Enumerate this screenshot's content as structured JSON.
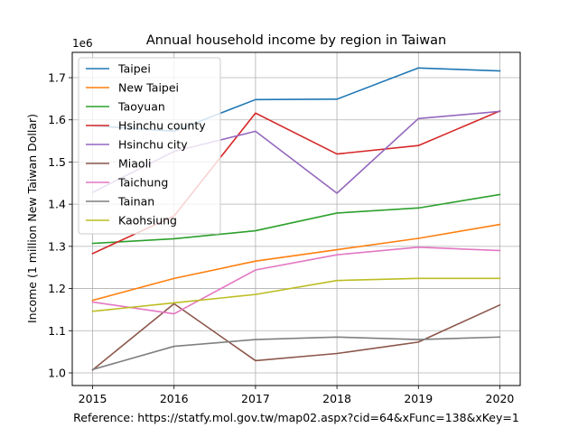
{
  "chart_data": {
    "type": "line",
    "title": "Annual household income by region in Taiwan",
    "xlabel": "",
    "ylabel": "Income (1 million New Taiwan Dollar)",
    "y_offset_text": "1e6",
    "note": "Reference: https://statfy.mol.gov.tw/map02.aspx?cid=64&xFunc=138&xKey=1",
    "x": [
      2015,
      2016,
      2017,
      2018,
      2019,
      2020
    ],
    "xticks": [
      "2015",
      "2016",
      "2017",
      "2018",
      "2019",
      "2020"
    ],
    "yticks": [
      "1.0",
      "1.1",
      "1.2",
      "1.3",
      "1.4",
      "1.5",
      "1.6",
      "1.7"
    ],
    "ytick_values": [
      1.0,
      1.1,
      1.2,
      1.3,
      1.4,
      1.5,
      1.6,
      1.7
    ],
    "xlim": [
      2014.75,
      2020.25
    ],
    "ylim": [
      0.97,
      1.76
    ],
    "grid": true,
    "legend_position": "top-left",
    "series": [
      {
        "name": "Taipei",
        "color": "#1f77b4",
        "values": [
          1.586,
          1.573,
          1.648,
          1.649,
          1.723,
          1.716
        ]
      },
      {
        "name": "New Taipei",
        "color": "#ff7f0e",
        "values": [
          1.172,
          1.224,
          1.265,
          1.292,
          1.319,
          1.352
        ]
      },
      {
        "name": "Taoyuan",
        "color": "#2ca02c",
        "values": [
          1.307,
          1.318,
          1.337,
          1.379,
          1.391,
          1.423
        ]
      },
      {
        "name": "Hsinchu county",
        "color": "#d62728",
        "values": [
          1.283,
          1.372,
          1.616,
          1.519,
          1.539,
          1.621
        ]
      },
      {
        "name": "Hsinchu city",
        "color": "#9467bd",
        "values": [
          1.428,
          1.525,
          1.573,
          1.426,
          1.603,
          1.62
        ]
      },
      {
        "name": "Miaoli",
        "color": "#8c564b",
        "values": [
          1.007,
          1.164,
          1.029,
          1.046,
          1.073,
          1.161
        ]
      },
      {
        "name": "Taichung",
        "color": "#e377c2",
        "values": [
          1.168,
          1.14,
          1.244,
          1.28,
          1.298,
          1.29
        ]
      },
      {
        "name": "Tainan",
        "color": "#7f7f7f",
        "values": [
          1.008,
          1.063,
          1.079,
          1.085,
          1.079,
          1.085
        ]
      },
      {
        "name": "Kaohsiung",
        "color": "#bcbd22",
        "values": [
          1.146,
          1.166,
          1.186,
          1.219,
          1.224,
          1.224
        ]
      }
    ]
  }
}
